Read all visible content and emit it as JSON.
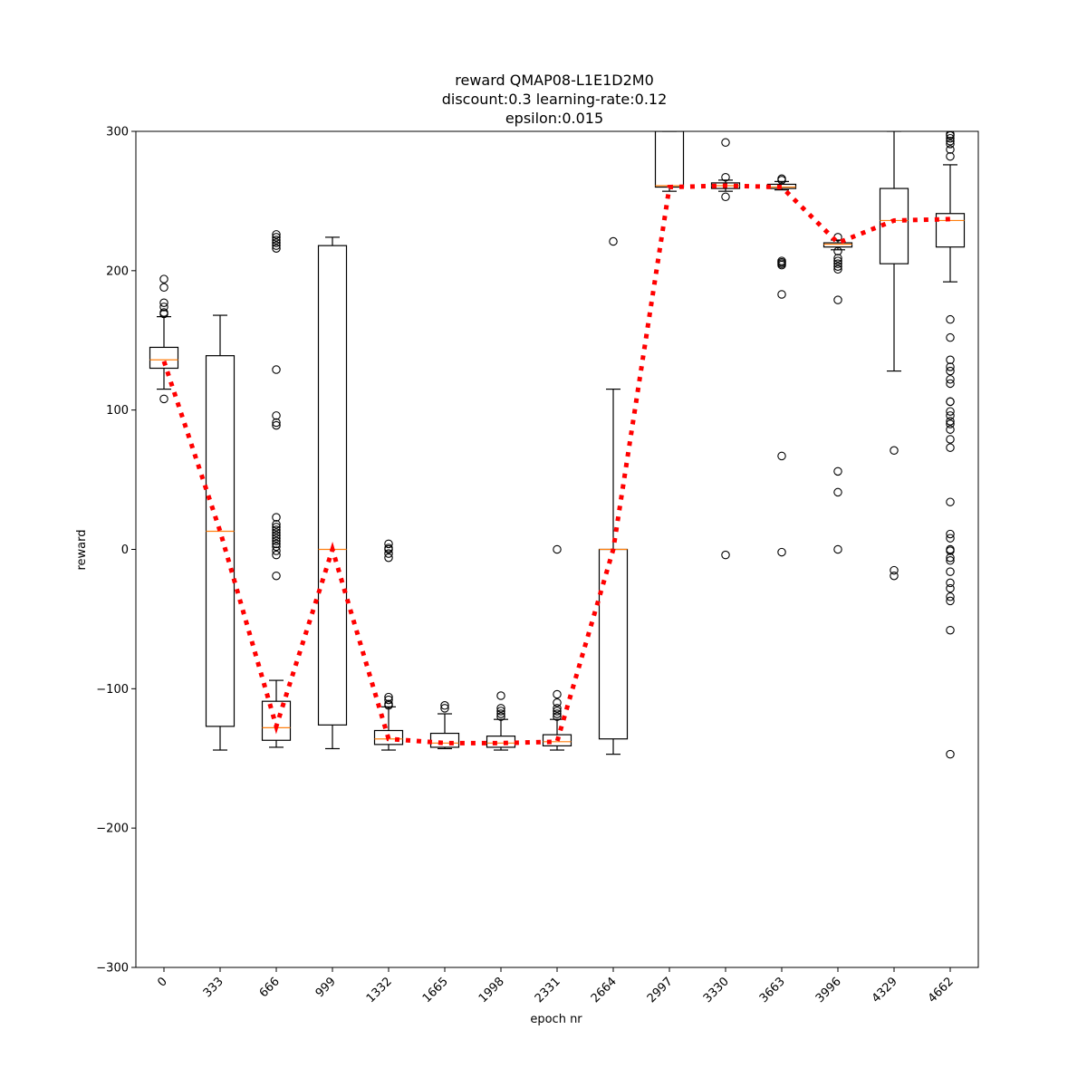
{
  "chart_data": {
    "type": "box",
    "title_lines": [
      "reward QMAP08-L1E1D2M0",
      "discount:0.3 learning-rate:0.12",
      "epsilon:0.015"
    ],
    "xlabel": "epoch nr",
    "ylabel": "reward",
    "ylim": [
      -300,
      300
    ],
    "yticks": [
      -300,
      -200,
      -100,
      0,
      100,
      200,
      300
    ],
    "grid": false,
    "colors": {
      "box": "#000000",
      "median": "#ff7f0e",
      "mean_line": "#ff0000"
    },
    "categories": [
      "0",
      "333",
      "666",
      "999",
      "1332",
      "1665",
      "1998",
      "2331",
      "2664",
      "2997",
      "3330",
      "3663",
      "3996",
      "4329",
      "4662"
    ],
    "boxes": [
      {
        "epoch": "0",
        "whislo": 115,
        "q1": 130,
        "med": 136,
        "q3": 145,
        "whishi": 167,
        "fliers": [
          108,
          169,
          170,
          174,
          177,
          188,
          194
        ]
      },
      {
        "epoch": "333",
        "whislo": -144,
        "q1": -127,
        "med": 13,
        "q3": 139,
        "whishi": 168,
        "fliers": []
      },
      {
        "epoch": "666",
        "whislo": -142,
        "q1": -137,
        "med": -128,
        "q3": -109,
        "whishi": -94,
        "fliers": [
          -19,
          -4,
          -1,
          2,
          4,
          6,
          8,
          10,
          12,
          14,
          16,
          18,
          23,
          89,
          91,
          96,
          129,
          216,
          218,
          220,
          222,
          224,
          226
        ]
      },
      {
        "epoch": "999",
        "whislo": -143,
        "q1": -126,
        "med": 0,
        "q3": 218,
        "whishi": 224,
        "fliers": []
      },
      {
        "epoch": "1332",
        "whislo": -144,
        "q1": -140,
        "med": -136,
        "q3": -130,
        "whishi": -113,
        "fliers": [
          -6,
          -3,
          0,
          1,
          4,
          -106,
          -108,
          -111,
          -112
        ]
      },
      {
        "epoch": "1665",
        "whislo": -143,
        "q1": -142,
        "med": -139,
        "q3": -132,
        "whishi": -118,
        "fliers": [
          -112,
          -114
        ]
      },
      {
        "epoch": "1998",
        "whislo": -144,
        "q1": -142,
        "med": -139,
        "q3": -134,
        "whishi": -122,
        "fliers": [
          -105,
          -114,
          -116,
          -118,
          -120
        ]
      },
      {
        "epoch": "2331",
        "whislo": -144,
        "q1": -141,
        "med": -138,
        "q3": -133,
        "whishi": -122,
        "fliers": [
          0,
          -104,
          -110,
          -114,
          -116,
          -118,
          -120
        ]
      },
      {
        "epoch": "2664",
        "whislo": -147,
        "q1": -136,
        "med": 0,
        "q3": 0,
        "whishi": 115,
        "fliers": [
          221
        ]
      },
      {
        "epoch": "2997",
        "whislo": 257,
        "q1": 260,
        "med": 261,
        "q3": 300,
        "whishi": 300,
        "fliers": []
      },
      {
        "epoch": "3330",
        "whislo": 257,
        "q1": 259,
        "med": 261,
        "q3": 263,
        "whishi": 265,
        "fliers": [
          -4,
          253,
          267,
          292
        ]
      },
      {
        "epoch": "3663",
        "whislo": 258,
        "q1": 259,
        "med": 260,
        "q3": 262,
        "whishi": 264,
        "fliers": [
          -2,
          67,
          183,
          204,
          205,
          206,
          207,
          265,
          266
        ]
      },
      {
        "epoch": "3996",
        "whislo": 215,
        "q1": 217,
        "med": 219,
        "q3": 220,
        "whishi": 222,
        "fliers": [
          0,
          41,
          56,
          179,
          201,
          203,
          205,
          207,
          209,
          214,
          224
        ]
      },
      {
        "epoch": "4329",
        "whislo": 128,
        "q1": 205,
        "med": 236,
        "q3": 259,
        "whishi": 300,
        "fliers": [
          -19,
          -15,
          71
        ]
      },
      {
        "epoch": "4662",
        "whislo": 192,
        "q1": 217,
        "med": 236,
        "q3": 241,
        "whishi": 276,
        "fliers": [
          -147,
          -58,
          -37,
          -34,
          -28,
          -24,
          -16,
          -8,
          -6,
          -1,
          0,
          8,
          11,
          34,
          73,
          79,
          86,
          90,
          92,
          96,
          99,
          106,
          106,
          119,
          122,
          128,
          131,
          136,
          152,
          165,
          282,
          287,
          291,
          293,
          295,
          297,
          298
        ]
      }
    ],
    "mean_line": {
      "style": "dotted",
      "values": [
        135,
        13,
        -127,
        0,
        -136,
        -139,
        -139,
        -138,
        0,
        260,
        261,
        260,
        220,
        236,
        237
      ]
    }
  }
}
